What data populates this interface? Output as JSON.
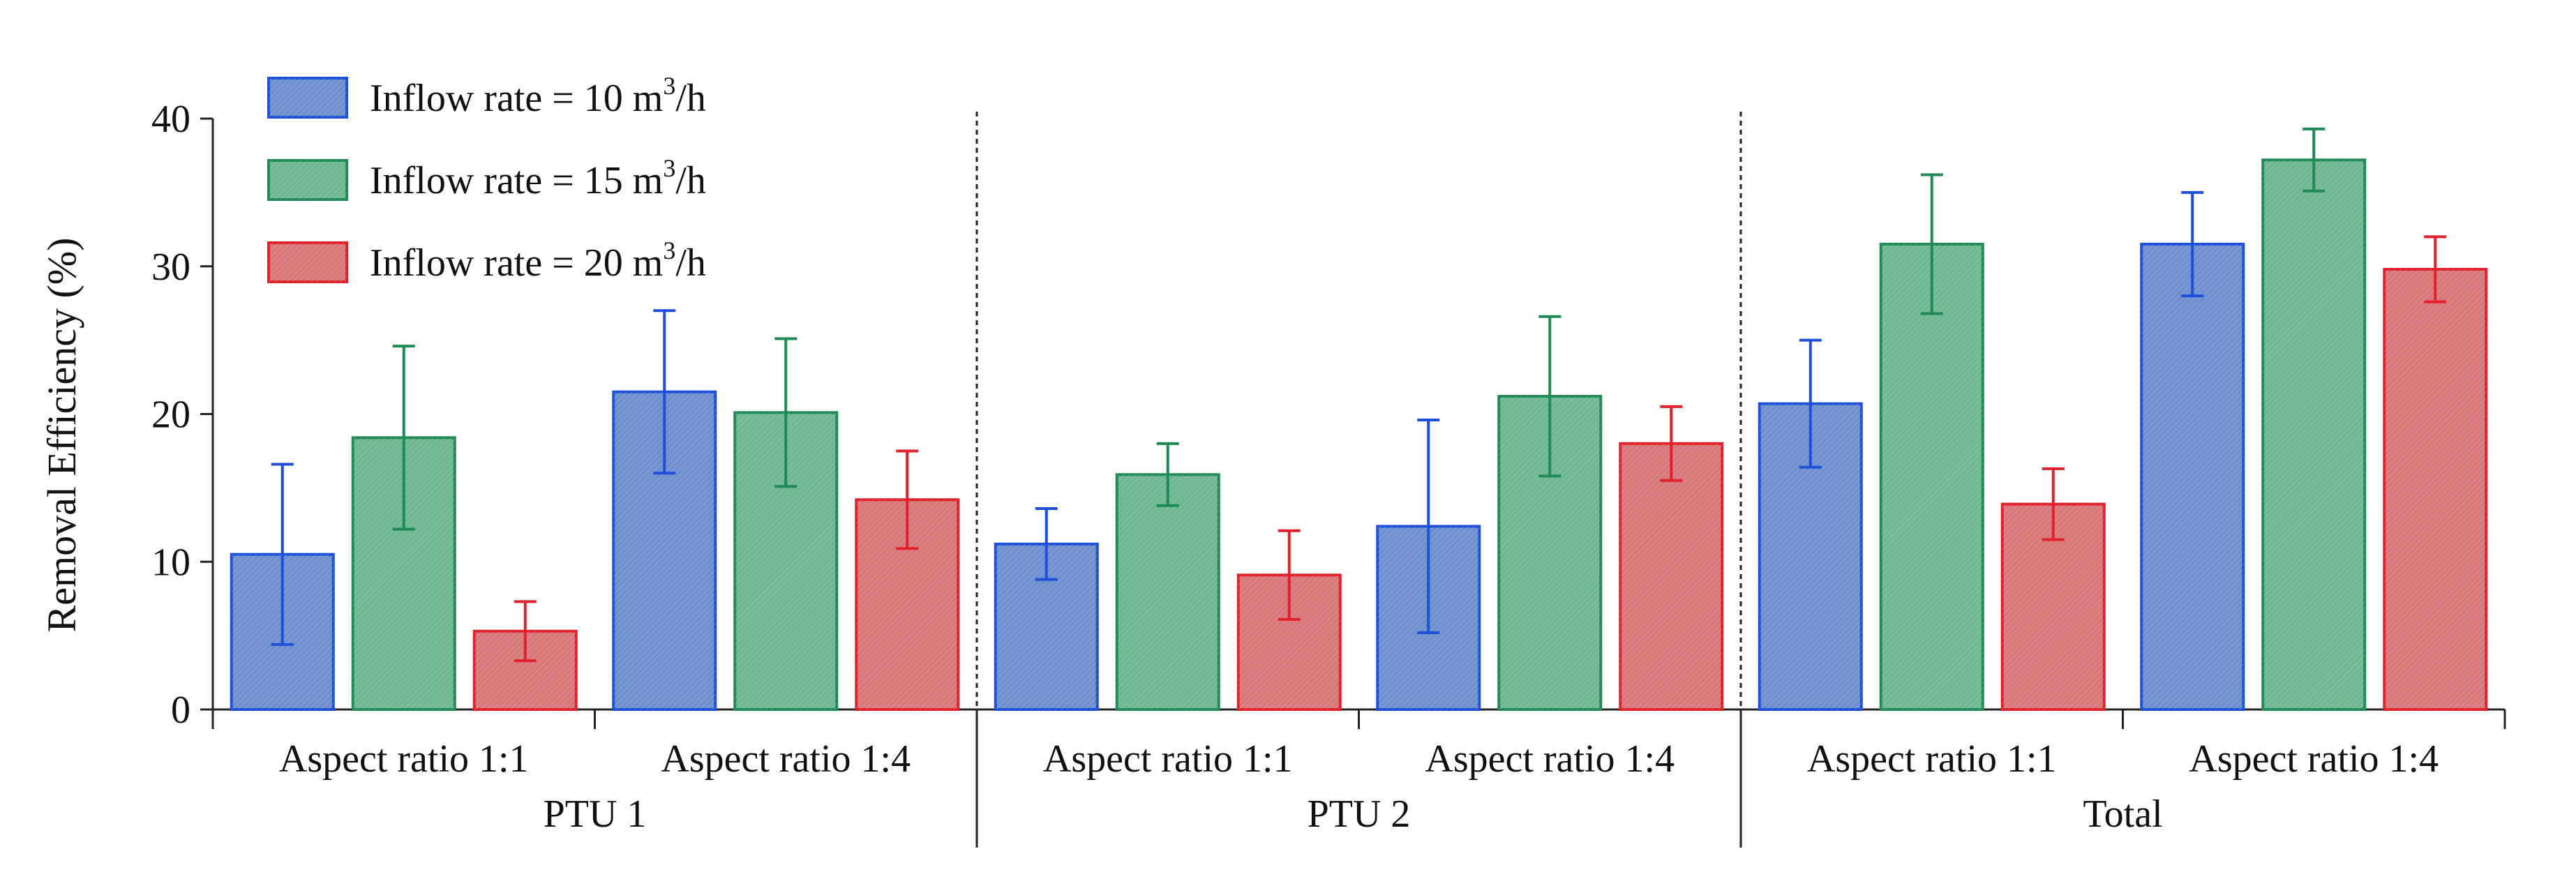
{
  "chart_data": {
    "type": "bar",
    "title": "",
    "xlabel": "",
    "ylabel": "Removal Efficiency (%)",
    "ylim": [
      0,
      40
    ],
    "yticks": [
      0,
      10,
      20,
      30,
      40
    ],
    "grid": false,
    "legend_position": "top-left",
    "groups": [
      {
        "label": "PTU 1",
        "categories": [
          "Aspect ratio 1:1",
          "Aspect ratio 1:4"
        ]
      },
      {
        "label": "PTU 2",
        "categories": [
          "Aspect ratio 1:1",
          "Aspect ratio 1:4"
        ]
      },
      {
        "label": "Total",
        "categories": [
          "Aspect ratio 1:1",
          "Aspect ratio 1:4"
        ]
      }
    ],
    "series": [
      {
        "name": "Inflow rate = 10 m3/h",
        "label_prefix": "Inflow rate = 10 m",
        "label_sup": "3",
        "label_suffix": "/h",
        "fill": "#6f90cf",
        "stroke": "#1f4fd8",
        "values": [
          10.5,
          21.5,
          11.2,
          12.4,
          20.7,
          31.5
        ],
        "errors": [
          6.1,
          5.5,
          2.4,
          7.2,
          4.3,
          3.5
        ]
      },
      {
        "name": "Inflow rate = 15 m3/h",
        "label_prefix": "Inflow rate = 15 m",
        "label_sup": "3",
        "label_suffix": "/h",
        "fill": "#6fb890",
        "stroke": "#1f8a55",
        "values": [
          18.4,
          20.1,
          15.9,
          21.2,
          31.5,
          37.2
        ],
        "errors": [
          6.2,
          5.0,
          2.1,
          5.4,
          4.7,
          2.1
        ]
      },
      {
        "name": "Inflow rate = 20 m3/h",
        "label_prefix": "Inflow rate = 20 m",
        "label_sup": "3",
        "label_suffix": "/h",
        "fill": "#d8787a",
        "stroke": "#e0202a",
        "values": [
          5.3,
          14.2,
          9.1,
          18.0,
          13.9,
          29.8
        ],
        "errors": [
          2.0,
          3.3,
          3.0,
          2.5,
          2.4,
          2.2
        ]
      }
    ]
  }
}
